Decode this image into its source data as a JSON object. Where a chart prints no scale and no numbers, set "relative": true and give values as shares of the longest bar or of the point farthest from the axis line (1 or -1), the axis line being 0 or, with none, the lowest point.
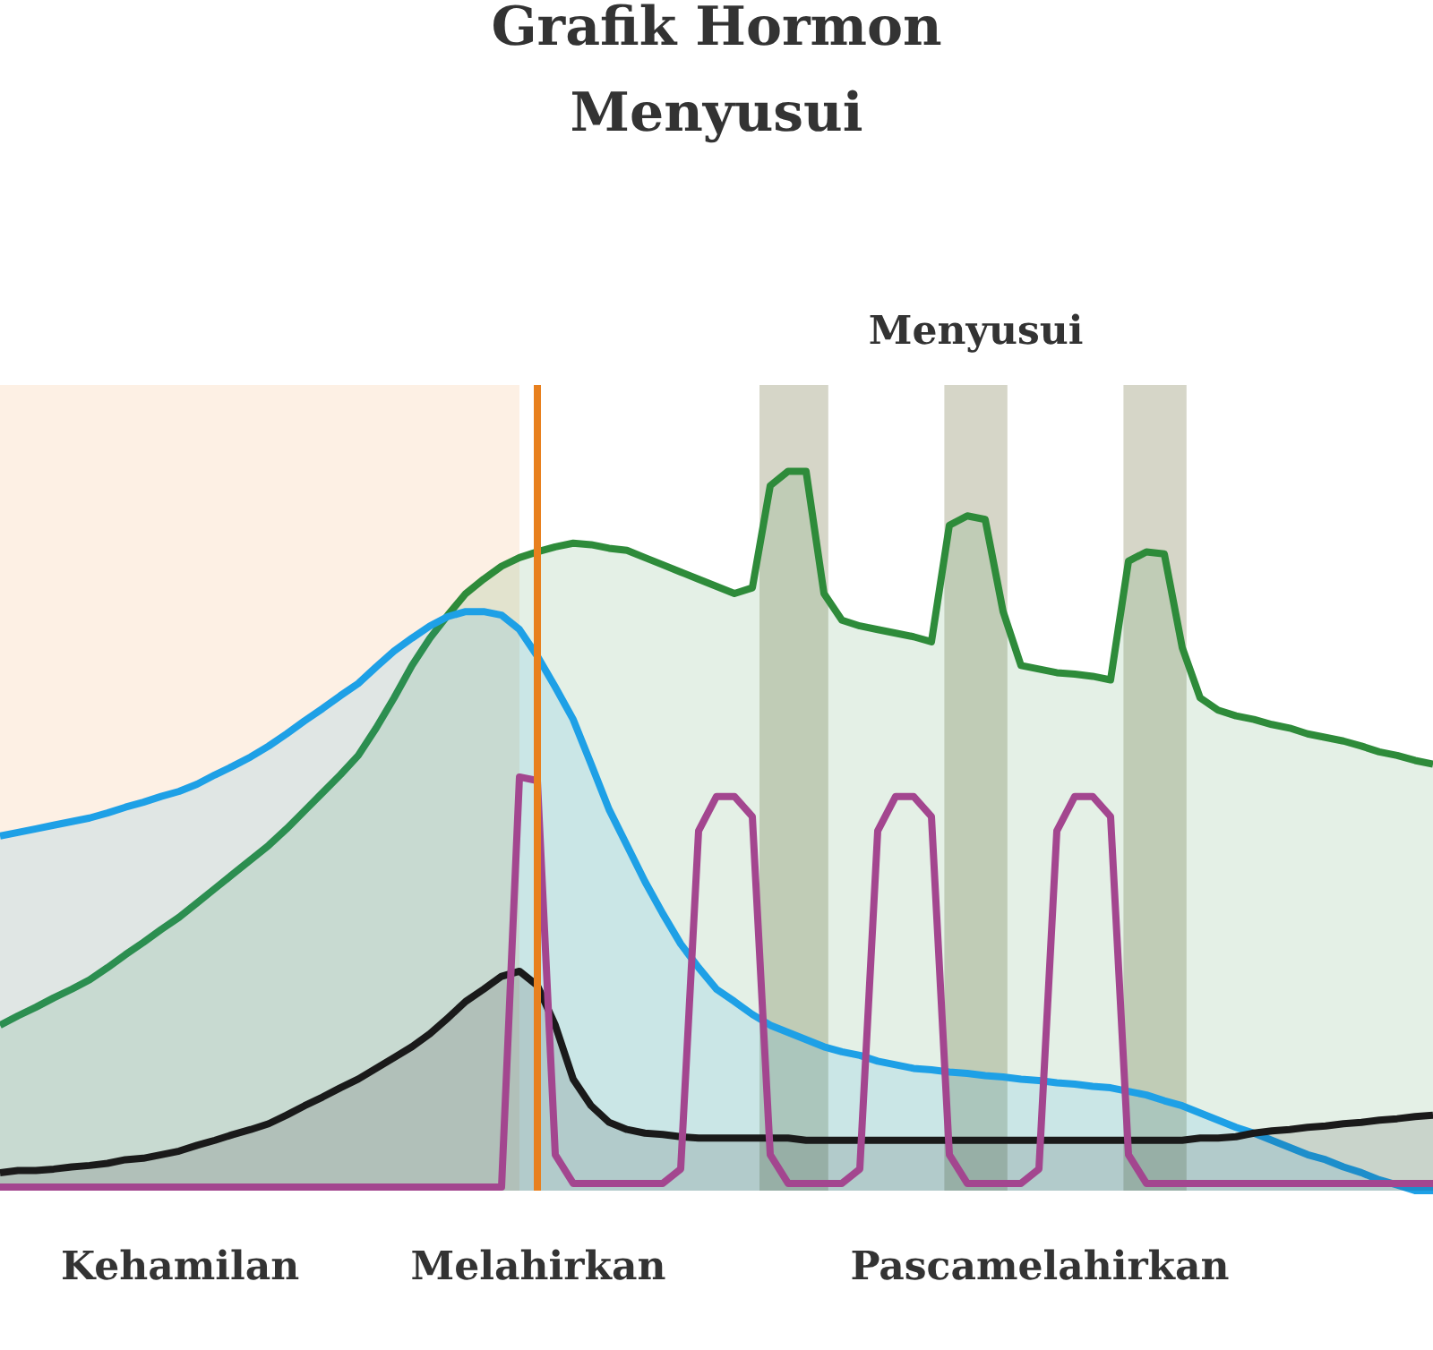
{
  "chart_data": {
    "type": "line",
    "title": "Grafik Hormon Menyusui",
    "relative": true,
    "tick_labels": "x",
    "categories": [
      null,
      null,
      null,
      null,
      null,
      null,
      null,
      null,
      null,
      null,
      "Kehamilan",
      null,
      null,
      null,
      null,
      null,
      null,
      null,
      null,
      null,
      null,
      null,
      null,
      null,
      null,
      null,
      null,
      null,
      null,
      null,
      "Melahirkan",
      null,
      null,
      null,
      null,
      null,
      null,
      null,
      null,
      null,
      null,
      null,
      null,
      null,
      null,
      null,
      null,
      null,
      null,
      null,
      null,
      null,
      null,
      null,
      null,
      null,
      null,
      null,
      "Pascamelahirkan",
      null,
      null,
      null,
      null,
      null,
      null,
      null,
      null,
      null,
      null,
      null,
      null,
      null,
      null,
      null,
      null,
      null,
      null,
      null,
      null,
      null,
      null
    ],
    "series": [
      {
        "type": "area",
        "color": "#2e8b3a",
        "values": [
          0.23,
          0.243,
          0.255,
          0.268,
          0.28,
          0.293,
          0.31,
          0.328,
          0.345,
          0.363,
          0.38,
          0.4,
          0.42,
          0.44,
          0.46,
          0.48,
          0.503,
          0.528,
          0.553,
          0.578,
          0.605,
          0.643,
          0.685,
          0.73,
          0.768,
          0.8,
          0.83,
          0.85,
          0.868,
          0.88,
          0.888,
          0.895,
          0.9,
          0.898,
          0.893,
          0.89,
          0.88,
          0.87,
          0.86,
          0.85,
          0.84,
          0.83,
          0.838,
          0.98,
          1.0,
          1.0,
          0.83,
          0.793,
          0.785,
          0.78,
          0.775,
          0.77,
          0.763,
          0.925,
          0.938,
          0.933,
          0.805,
          0.73,
          0.725,
          0.72,
          0.718,
          0.715,
          0.71,
          0.875,
          0.888,
          0.885,
          0.755,
          0.685,
          0.668,
          0.66,
          0.655,
          0.648,
          0.643,
          0.635,
          0.63,
          0.625,
          0.618,
          0.61,
          0.605,
          0.598,
          0.593
        ]
      },
      {
        "type": "area",
        "color": "#1ea0e6",
        "values": [
          0.493,
          0.498,
          0.503,
          0.508,
          0.513,
          0.518,
          0.525,
          0.533,
          0.54,
          0.548,
          0.555,
          0.565,
          0.578,
          0.59,
          0.603,
          0.618,
          0.635,
          0.653,
          0.67,
          0.688,
          0.705,
          0.728,
          0.75,
          0.768,
          0.785,
          0.798,
          0.805,
          0.805,
          0.8,
          0.78,
          0.743,
          0.7,
          0.655,
          0.593,
          0.53,
          0.48,
          0.43,
          0.385,
          0.343,
          0.31,
          0.28,
          0.263,
          0.245,
          0.23,
          0.22,
          0.21,
          0.2,
          0.193,
          0.188,
          0.18,
          0.175,
          0.17,
          0.168,
          0.165,
          0.163,
          0.16,
          0.158,
          0.155,
          0.153,
          0.15,
          0.148,
          0.145,
          0.143,
          0.138,
          0.133,
          0.125,
          0.118,
          0.108,
          0.098,
          0.088,
          0.08,
          0.07,
          0.06,
          0.05,
          0.043,
          0.033,
          0.025,
          0.015,
          0.008,
          0,
          0
        ]
      },
      {
        "type": "area",
        "color": "#1a1a1a",
        "values": [
          0.025,
          0.028,
          0.028,
          0.03,
          0.033,
          0.035,
          0.038,
          0.043,
          0.045,
          0.05,
          0.055,
          0.063,
          0.07,
          0.078,
          0.085,
          0.093,
          0.105,
          0.118,
          0.13,
          0.143,
          0.155,
          0.17,
          0.185,
          0.2,
          0.218,
          0.24,
          0.263,
          0.28,
          0.298,
          0.305,
          0.285,
          0.23,
          0.155,
          0.118,
          0.095,
          0.085,
          0.08,
          0.078,
          0.075,
          0.073,
          0.073,
          0.073,
          0.073,
          0.073,
          0.073,
          0.07,
          0.07,
          0.07,
          0.07,
          0.07,
          0.07,
          0.07,
          0.07,
          0.07,
          0.07,
          0.07,
          0.07,
          0.07,
          0.07,
          0.07,
          0.07,
          0.07,
          0.07,
          0.07,
          0.07,
          0.07,
          0.07,
          0.073,
          0.073,
          0.075,
          0.08,
          0.083,
          0.085,
          0.088,
          0.09,
          0.093,
          0.095,
          0.098,
          0.1,
          0.103,
          0.105
        ]
      },
      {
        "color": "#a3468f",
        "values": [
          0.005,
          0.005,
          0.005,
          0.005,
          0.005,
          0.005,
          0.005,
          0.005,
          0.005,
          0.005,
          0.005,
          0.005,
          0.005,
          0.005,
          0.005,
          0.005,
          0.005,
          0.005,
          0.005,
          0.005,
          0.005,
          0.005,
          0.005,
          0.005,
          0.005,
          0.005,
          0.005,
          0.005,
          0.005,
          0.575,
          0.57,
          0.05,
          0.01,
          0.01,
          0.01,
          0.01,
          0.01,
          0.01,
          0.03,
          0.5,
          0.548,
          0.548,
          0.52,
          0.05,
          0.01,
          0.01,
          0.01,
          0.01,
          0.03,
          0.5,
          0.548,
          0.548,
          0.52,
          0.05,
          0.01,
          0.01,
          0.01,
          0.01,
          0.03,
          0.5,
          0.548,
          0.548,
          0.52,
          0.05,
          0.01,
          0.01,
          0.01,
          0.01,
          0.01,
          0.01,
          0.01,
          0.01,
          0.01,
          0.01,
          0.01,
          0.01,
          0.01,
          0.01,
          0.01,
          0.01,
          0.01
        ]
      }
    ],
    "annotations": [
      "Menyusui"
    ],
    "ref_lines": [
      {
        "axis": "x",
        "value": "Melahirkan",
        "color": "#e8801e"
      }
    ]
  }
}
